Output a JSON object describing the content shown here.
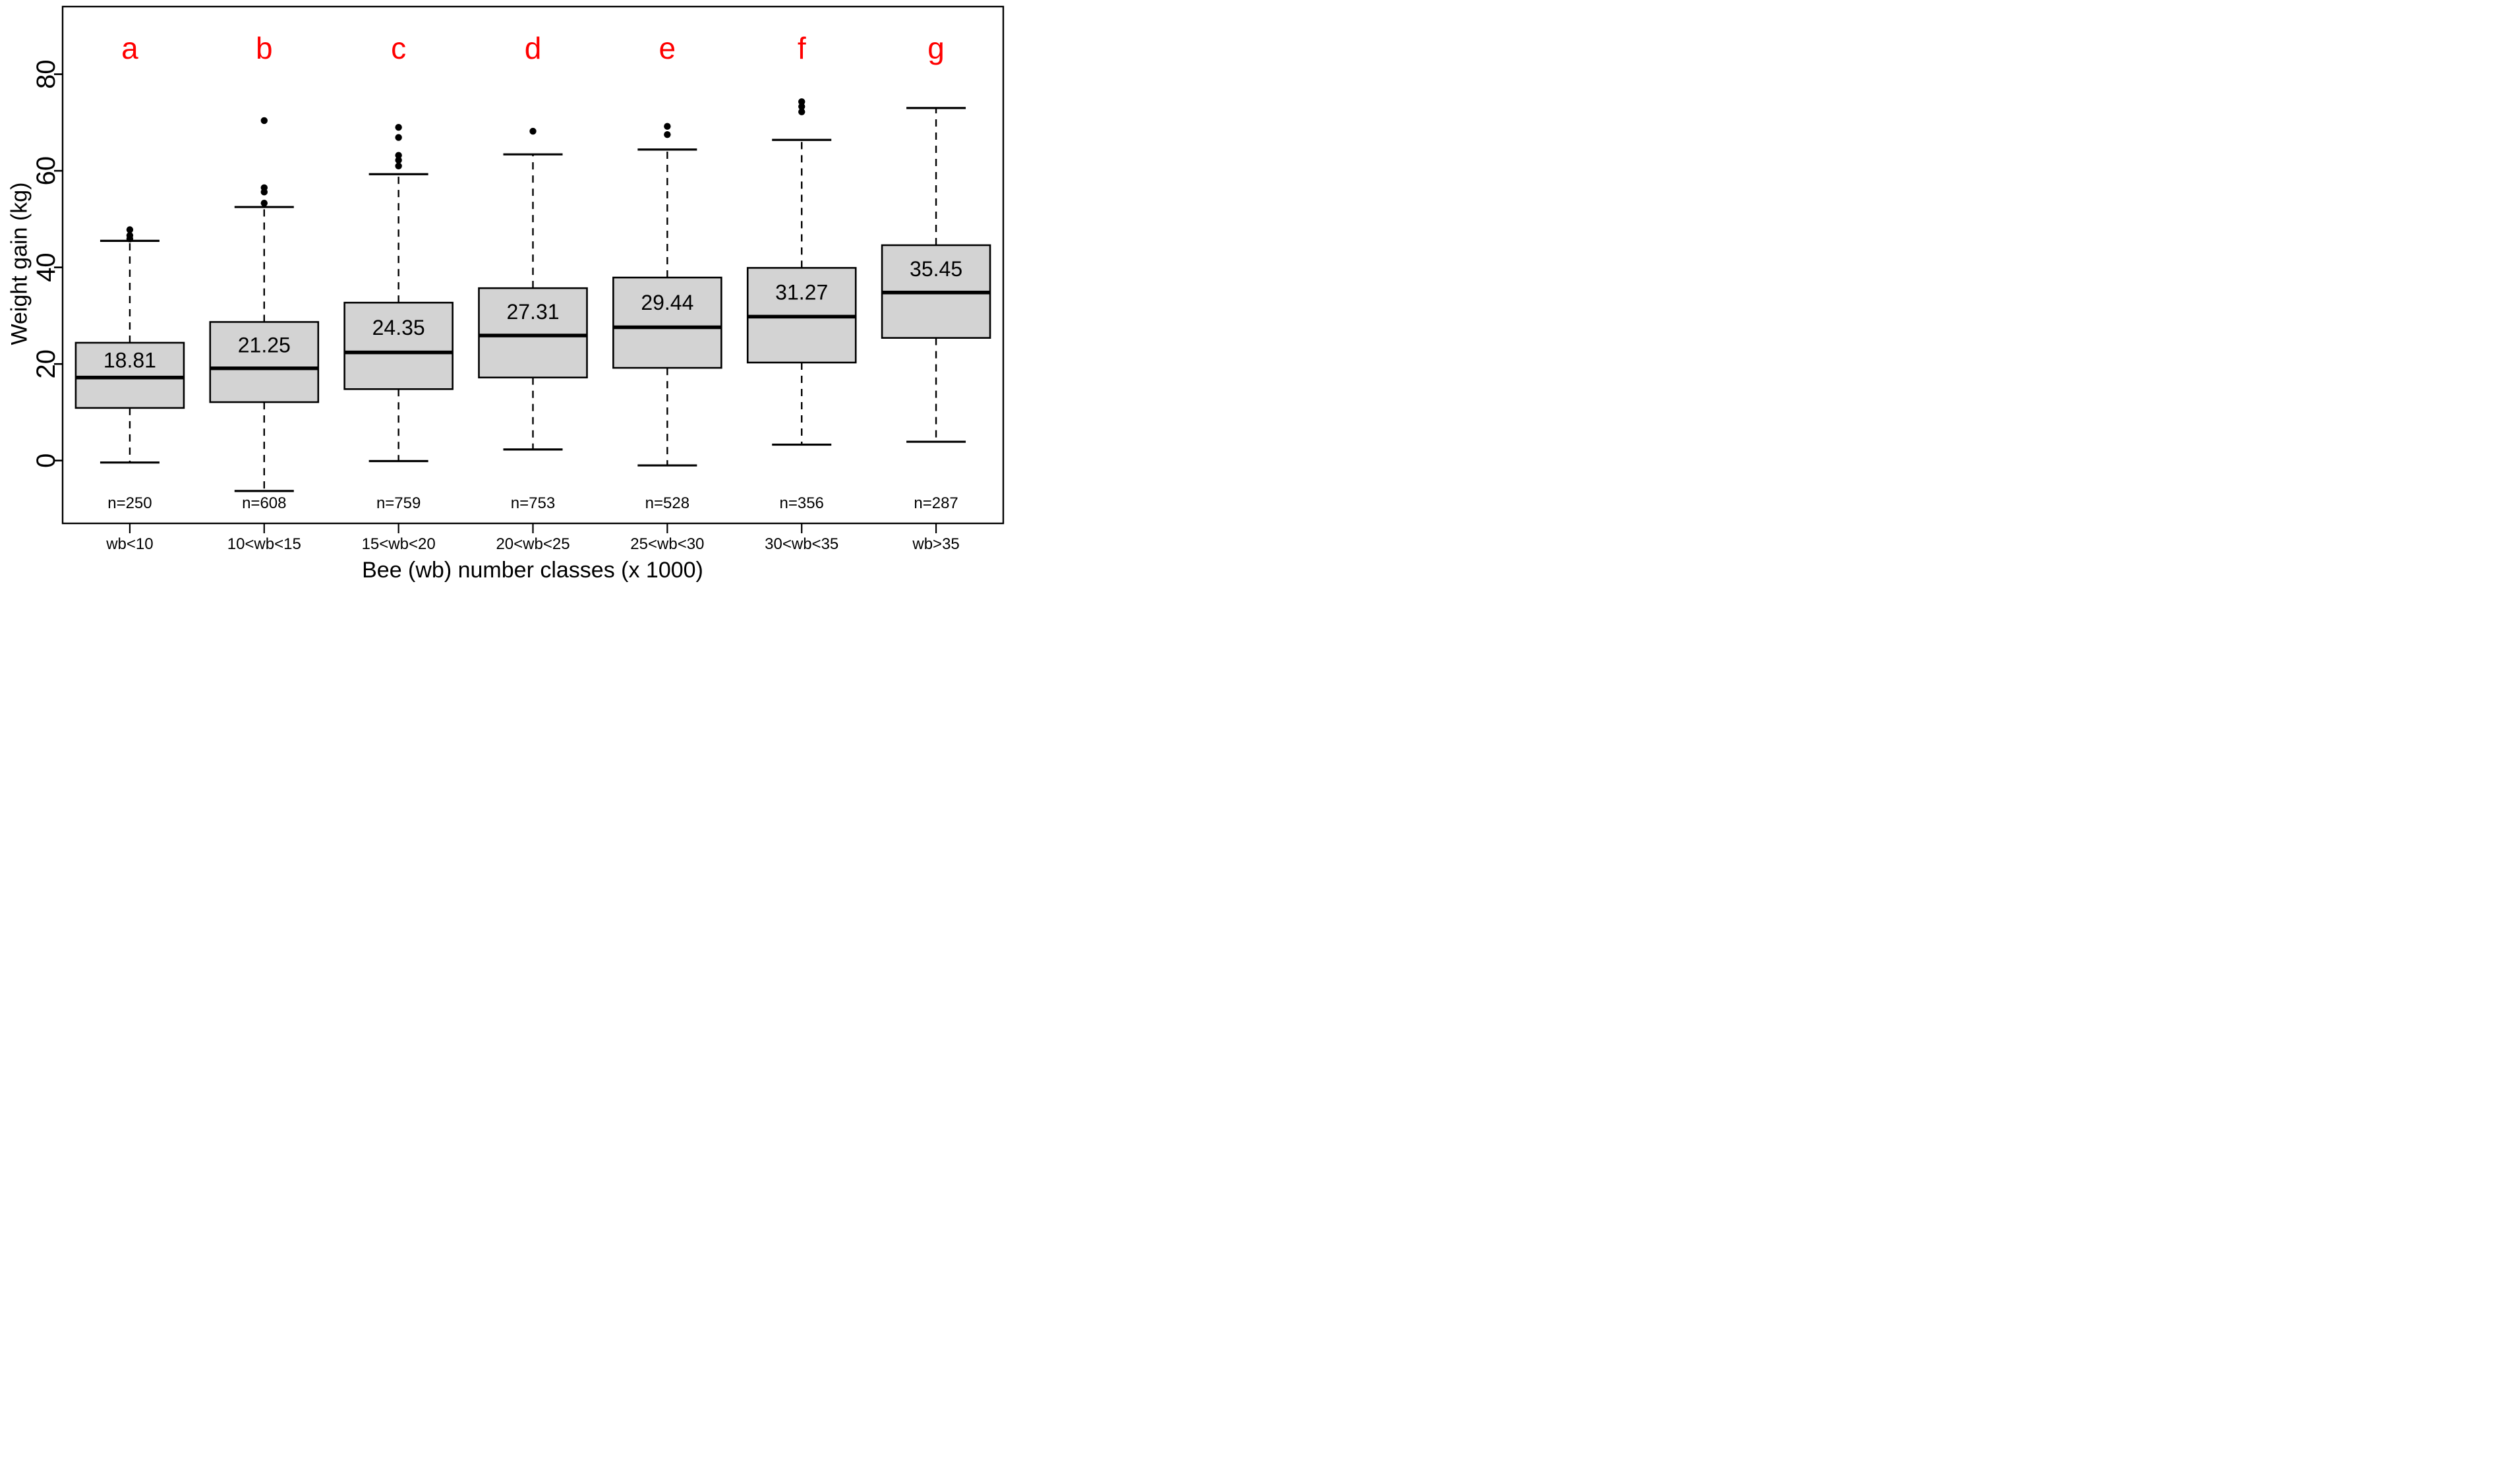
{
  "figure": {
    "background": "#ffffff",
    "letter_color": "#ff0000",
    "box_fill": "#d3d3d3",
    "line_color": "#000000"
  },
  "chart_data": {
    "type": "boxplot",
    "title": "",
    "xlabel": "Bee (wb) number classes (x 1000)",
    "ylabel": "Weight gain (kg)",
    "y_ticks": [
      0,
      20,
      40,
      60,
      80
    ],
    "y_tick_labels": [
      "0",
      "20",
      "40",
      "60",
      "80"
    ],
    "ylim": [
      -13,
      94
    ],
    "grid": false,
    "legend": "none",
    "groups": [
      {
        "letter": "a",
        "class_label": "wb<10",
        "n_label": "n=250",
        "mean_label": "18.81",
        "mean": 18.81,
        "whisker_low": -0.4,
        "q1": 10.9,
        "median": 17.2,
        "q3": 24.4,
        "whisker_high": 45.5,
        "outliers": [
          45.9,
          46.6,
          47.8
        ]
      },
      {
        "letter": "b",
        "class_label": "10<wb<15",
        "n_label": "n=608",
        "mean_label": "21.25",
        "mean": 21.25,
        "whisker_low": -6.3,
        "q1": 12.1,
        "median": 19.1,
        "q3": 28.7,
        "whisker_high": 52.5,
        "outliers": [
          53.3,
          55.6,
          56.5,
          70.4
        ]
      },
      {
        "letter": "c",
        "class_label": "15<wb<20",
        "n_label": "n=759",
        "mean_label": "24.35",
        "mean": 24.35,
        "whisker_low": -0.1,
        "q1": 14.8,
        "median": 22.4,
        "q3": 32.7,
        "whisker_high": 59.3,
        "outliers": [
          61.0,
          62.2,
          63.2,
          66.9,
          69.0
        ]
      },
      {
        "letter": "d",
        "class_label": "20<wb<25",
        "n_label": "n=753",
        "mean_label": "27.31",
        "mean": 27.31,
        "whisker_low": 2.3,
        "q1": 17.2,
        "median": 25.9,
        "q3": 35.7,
        "whisker_high": 63.4,
        "outliers": [
          68.2
        ]
      },
      {
        "letter": "e",
        "class_label": "25<wb<30",
        "n_label": "n=528",
        "mean_label": "29.44",
        "mean": 29.44,
        "whisker_low": -1.0,
        "q1": 19.2,
        "median": 27.6,
        "q3": 37.9,
        "whisker_high": 64.4,
        "outliers": [
          67.5,
          69.2
        ]
      },
      {
        "letter": "f",
        "class_label": "30<wb<35",
        "n_label": "n=356",
        "mean_label": "31.27",
        "mean": 31.27,
        "whisker_low": 3.3,
        "q1": 20.3,
        "median": 29.8,
        "q3": 39.9,
        "whisker_high": 66.4,
        "outliers": [
          72.2,
          73.3,
          74.3
        ]
      },
      {
        "letter": "g",
        "class_label": "wb>35",
        "n_label": "n=287",
        "mean_label": "35.45",
        "mean": 35.45,
        "whisker_low": 3.9,
        "q1": 25.4,
        "median": 34.8,
        "q3": 44.6,
        "whisker_high": 73.0,
        "outliers": []
      }
    ]
  }
}
